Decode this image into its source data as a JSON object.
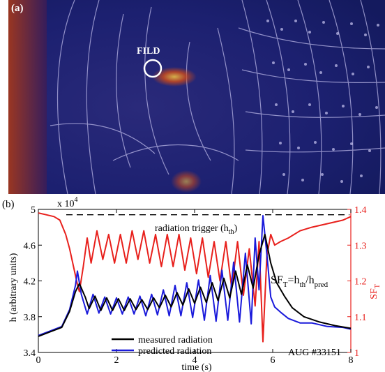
{
  "panel_a": {
    "label": "(a)",
    "annotation": "FILD"
  },
  "panel_b": {
    "label": "(b)",
    "exponent_prefix": "x 10",
    "exponent_power": "4",
    "ylabel_left": "h (arbitrary units)",
    "ylabel_right_main": "SF",
    "ylabel_right_sub": "T",
    "xlabel": "time (s)",
    "trigger_label_main": "radiation trigger (h",
    "trigger_label_sub": "th",
    "trigger_label_close": ")",
    "formula": {
      "lhs": "SF",
      "lhs_sub": "T",
      "eq": "=h",
      "num_sub": "th",
      "slash": "/h",
      "den_sub": "pred"
    },
    "shot_label": "AUG #33151",
    "legend": [
      {
        "name": "measured radiation",
        "color": "#000000"
      },
      {
        "name": "predicted radiation",
        "color": "#1a1adb"
      }
    ]
  },
  "colors": {
    "measured": "#000000",
    "predicted": "#1a1adb",
    "sf": "#e8201c",
    "right_axis": "#e8201c",
    "panel_a_bg": "#1a1f6e"
  },
  "chart_data": {
    "type": "line",
    "xlabel": "time (s)",
    "ylabel": "h (arbitrary units)",
    "y2label": "SF_T",
    "xlim": [
      0,
      8
    ],
    "ylim": [
      34000,
      50000
    ],
    "y2lim": [
      1.0,
      1.4
    ],
    "xticks": [
      0,
      2,
      4,
      6,
      8
    ],
    "yticks": [
      34000,
      38000,
      42000,
      46000,
      50000
    ],
    "ytick_labels": [
      "3.4",
      "3.8",
      "4.2",
      "4.6",
      "5"
    ],
    "y2ticks": [
      1.0,
      1.1,
      1.2,
      1.3,
      1.4
    ],
    "y2tick_labels": [
      "1",
      "1.1",
      "1.2",
      "1.3",
      "1.4"
    ],
    "trigger_level": 49400,
    "series": [
      {
        "name": "measured radiation",
        "axis": "left",
        "x": [
          0,
          0.3,
          0.6,
          0.8,
          0.95,
          1.05,
          1.2,
          1.3,
          1.45,
          1.6,
          1.75,
          1.9,
          2.05,
          2.2,
          2.35,
          2.5,
          2.65,
          2.8,
          2.95,
          3.1,
          3.25,
          3.4,
          3.55,
          3.7,
          3.85,
          4.0,
          4.15,
          4.3,
          4.45,
          4.6,
          4.75,
          4.9,
          5.05,
          5.2,
          5.35,
          5.5,
          5.65,
          5.8,
          5.95,
          6.1,
          6.3,
          6.5,
          6.8,
          7.2,
          7.6,
          8.0
        ],
        "y": [
          35800,
          36300,
          36800,
          38600,
          40800,
          41700,
          40200,
          38900,
          40300,
          38700,
          40100,
          38700,
          40000,
          38700,
          40000,
          38800,
          39900,
          38800,
          40100,
          39000,
          40400,
          39100,
          40700,
          39300,
          41100,
          39500,
          41300,
          39600,
          41800,
          39800,
          42300,
          40100,
          43100,
          40500,
          43800,
          41200,
          44900,
          47200,
          44000,
          41800,
          40300,
          39000,
          38000,
          37400,
          37000,
          36700
        ]
      },
      {
        "name": "predicted radiation",
        "axis": "left",
        "x": [
          0,
          0.3,
          0.6,
          0.8,
          0.95,
          1.0,
          1.1,
          1.25,
          1.4,
          1.55,
          1.7,
          1.85,
          2.0,
          2.15,
          2.3,
          2.45,
          2.6,
          2.75,
          2.9,
          3.05,
          3.2,
          3.35,
          3.5,
          3.65,
          3.8,
          3.95,
          4.1,
          4.25,
          4.4,
          4.55,
          4.7,
          4.85,
          5.0,
          5.15,
          5.3,
          5.45,
          5.55,
          5.65,
          5.75,
          5.85,
          5.95,
          6.05,
          6.2,
          6.4,
          6.7,
          7.0,
          7.4,
          7.8,
          8.0
        ],
        "y": [
          35900,
          36400,
          36900,
          38800,
          41500,
          43100,
          40500,
          38300,
          40500,
          38400,
          40200,
          38300,
          40100,
          38300,
          40200,
          38300,
          40300,
          38100,
          40500,
          38200,
          41000,
          38100,
          41500,
          38100,
          41800,
          37900,
          42100,
          37600,
          42600,
          37500,
          43200,
          37600,
          44100,
          37400,
          45100,
          37200,
          46800,
          41000,
          49300,
          45000,
          40200,
          39100,
          38500,
          37800,
          37300,
          37300,
          36900,
          36800,
          36600
        ]
      },
      {
        "name": "SF_T",
        "axis": "right",
        "x": [
          0,
          0.2,
          0.4,
          0.55,
          0.7,
          0.8,
          0.9,
          1.0,
          1.05,
          1.15,
          1.25,
          1.35,
          1.5,
          1.65,
          1.8,
          1.95,
          2.1,
          2.25,
          2.4,
          2.55,
          2.7,
          2.85,
          3.0,
          3.15,
          3.3,
          3.45,
          3.6,
          3.75,
          3.9,
          4.05,
          4.2,
          4.35,
          4.5,
          4.65,
          4.8,
          4.95,
          5.1,
          5.25,
          5.4,
          5.55,
          5.65,
          5.75,
          5.85,
          5.95,
          6.05,
          6.2,
          6.4,
          6.7,
          7.0,
          7.4,
          7.8,
          8.0
        ],
        "y": [
          1.39,
          1.385,
          1.38,
          1.37,
          1.33,
          1.29,
          1.24,
          1.19,
          1.17,
          1.24,
          1.32,
          1.25,
          1.34,
          1.26,
          1.33,
          1.25,
          1.33,
          1.25,
          1.34,
          1.26,
          1.34,
          1.25,
          1.33,
          1.24,
          1.33,
          1.24,
          1.33,
          1.23,
          1.32,
          1.22,
          1.32,
          1.21,
          1.31,
          1.2,
          1.31,
          1.18,
          1.31,
          1.16,
          1.29,
          1.13,
          1.31,
          1.03,
          1.27,
          1.33,
          1.3,
          1.31,
          1.32,
          1.34,
          1.35,
          1.36,
          1.37,
          1.38
        ]
      }
    ]
  }
}
